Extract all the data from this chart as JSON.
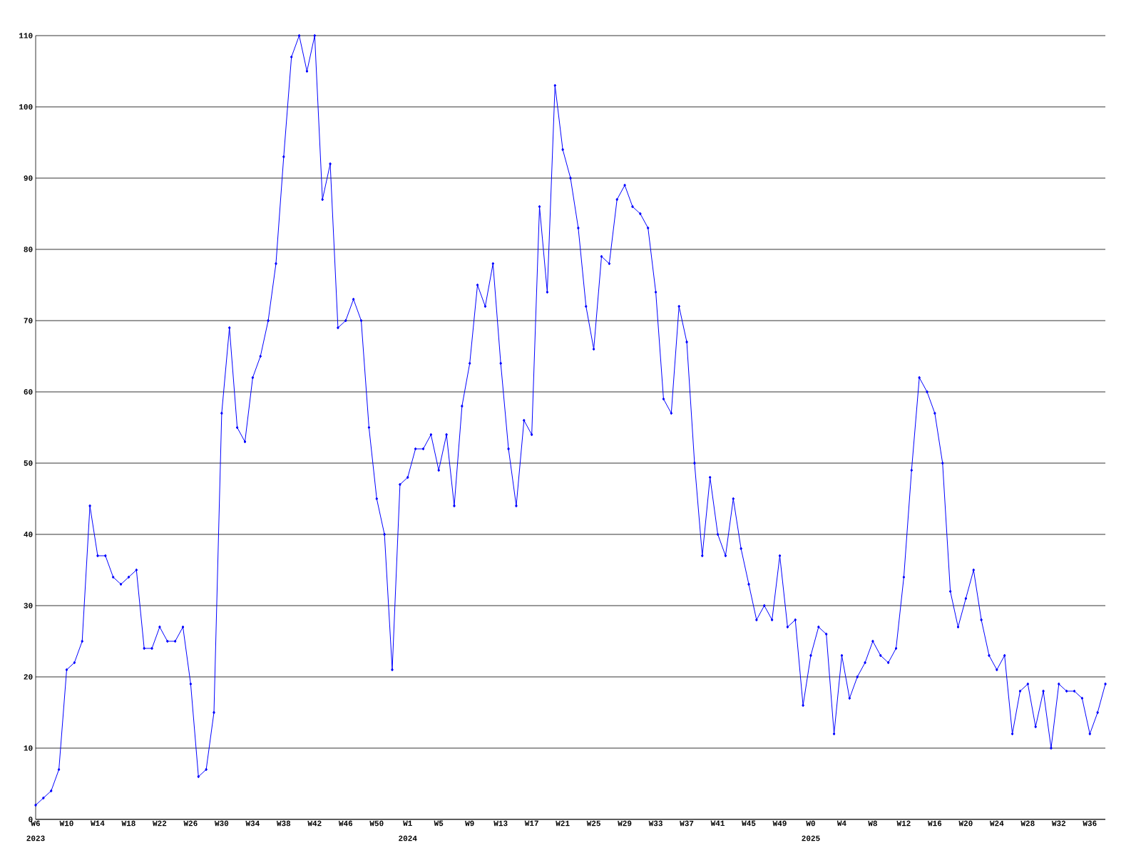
{
  "chart_data": {
    "type": "line",
    "categories": [
      "W6",
      null,
      null,
      null,
      "W10",
      null,
      null,
      null,
      "W14",
      null,
      null,
      null,
      "W18",
      null,
      null,
      null,
      "W22",
      null,
      null,
      null,
      "W26",
      null,
      null,
      null,
      "W30",
      null,
      null,
      null,
      "W34",
      null,
      null,
      null,
      "W38",
      null,
      null,
      null,
      "W42",
      null,
      null,
      null,
      "W46",
      null,
      null,
      null,
      "W50",
      null,
      null,
      null,
      "W1",
      null,
      null,
      null,
      "W5",
      null,
      null,
      null,
      "W9",
      null,
      null,
      null,
      "W13",
      null,
      null,
      null,
      "W17",
      null,
      null,
      null,
      "W21",
      null,
      null,
      null,
      "W25",
      null,
      null,
      null,
      "W29",
      null,
      null,
      null,
      "W33",
      null,
      null,
      null,
      "W37",
      null,
      null,
      null,
      "W41",
      null,
      null,
      null,
      "W45",
      null,
      null,
      null,
      "W49",
      null,
      null,
      null,
      "W0",
      null,
      null,
      null,
      "W4",
      null,
      null,
      null,
      "W8",
      null,
      null,
      null,
      "W12",
      null,
      null,
      null,
      "W16",
      null,
      null,
      null,
      "W20",
      null,
      null,
      null,
      "W24",
      null,
      null,
      null,
      "W28",
      null,
      null,
      null,
      "W32",
      null,
      null,
      null,
      "W36",
      null,
      null
    ],
    "values": [
      2,
      3,
      4,
      7,
      21,
      22,
      25,
      44,
      37,
      37,
      34,
      33,
      34,
      35,
      24,
      24,
      27,
      25,
      25,
      27,
      19,
      6,
      7,
      15,
      57,
      69,
      55,
      53,
      62,
      65,
      70,
      78,
      93,
      107,
      110,
      105,
      110,
      87,
      92,
      69,
      70,
      73,
      70,
      55,
      45,
      40,
      21,
      47,
      48,
      52,
      52,
      54,
      49,
      54,
      44,
      58,
      64,
      75,
      72,
      78,
      64,
      52,
      44,
      56,
      54,
      86,
      74,
      103,
      94,
      90,
      83,
      72,
      66,
      79,
      78,
      87,
      89,
      86,
      85,
      83,
      74,
      59,
      57,
      72,
      67,
      50,
      37,
      48,
      40,
      37,
      45,
      38,
      33,
      28,
      30,
      28,
      37,
      27,
      28,
      16,
      23,
      27,
      26,
      12,
      23,
      17,
      20,
      22,
      25,
      23,
      22,
      24,
      34,
      49,
      62,
      60,
      57,
      50,
      32,
      27,
      31,
      35,
      28,
      23,
      21,
      23,
      12,
      18,
      19,
      13,
      18,
      10,
      19,
      18,
      18,
      17,
      12,
      15,
      19
    ],
    "color": "#0000ff",
    "marker": "diamond",
    "line_style": "solid",
    "ylim": [
      0,
      110
    ],
    "yticks": [
      0,
      10,
      20,
      30,
      40,
      50,
      60,
      70,
      80,
      90,
      100,
      110
    ],
    "grid": "y",
    "annotations": [
      "2023",
      "2024",
      "2025"
    ]
  }
}
